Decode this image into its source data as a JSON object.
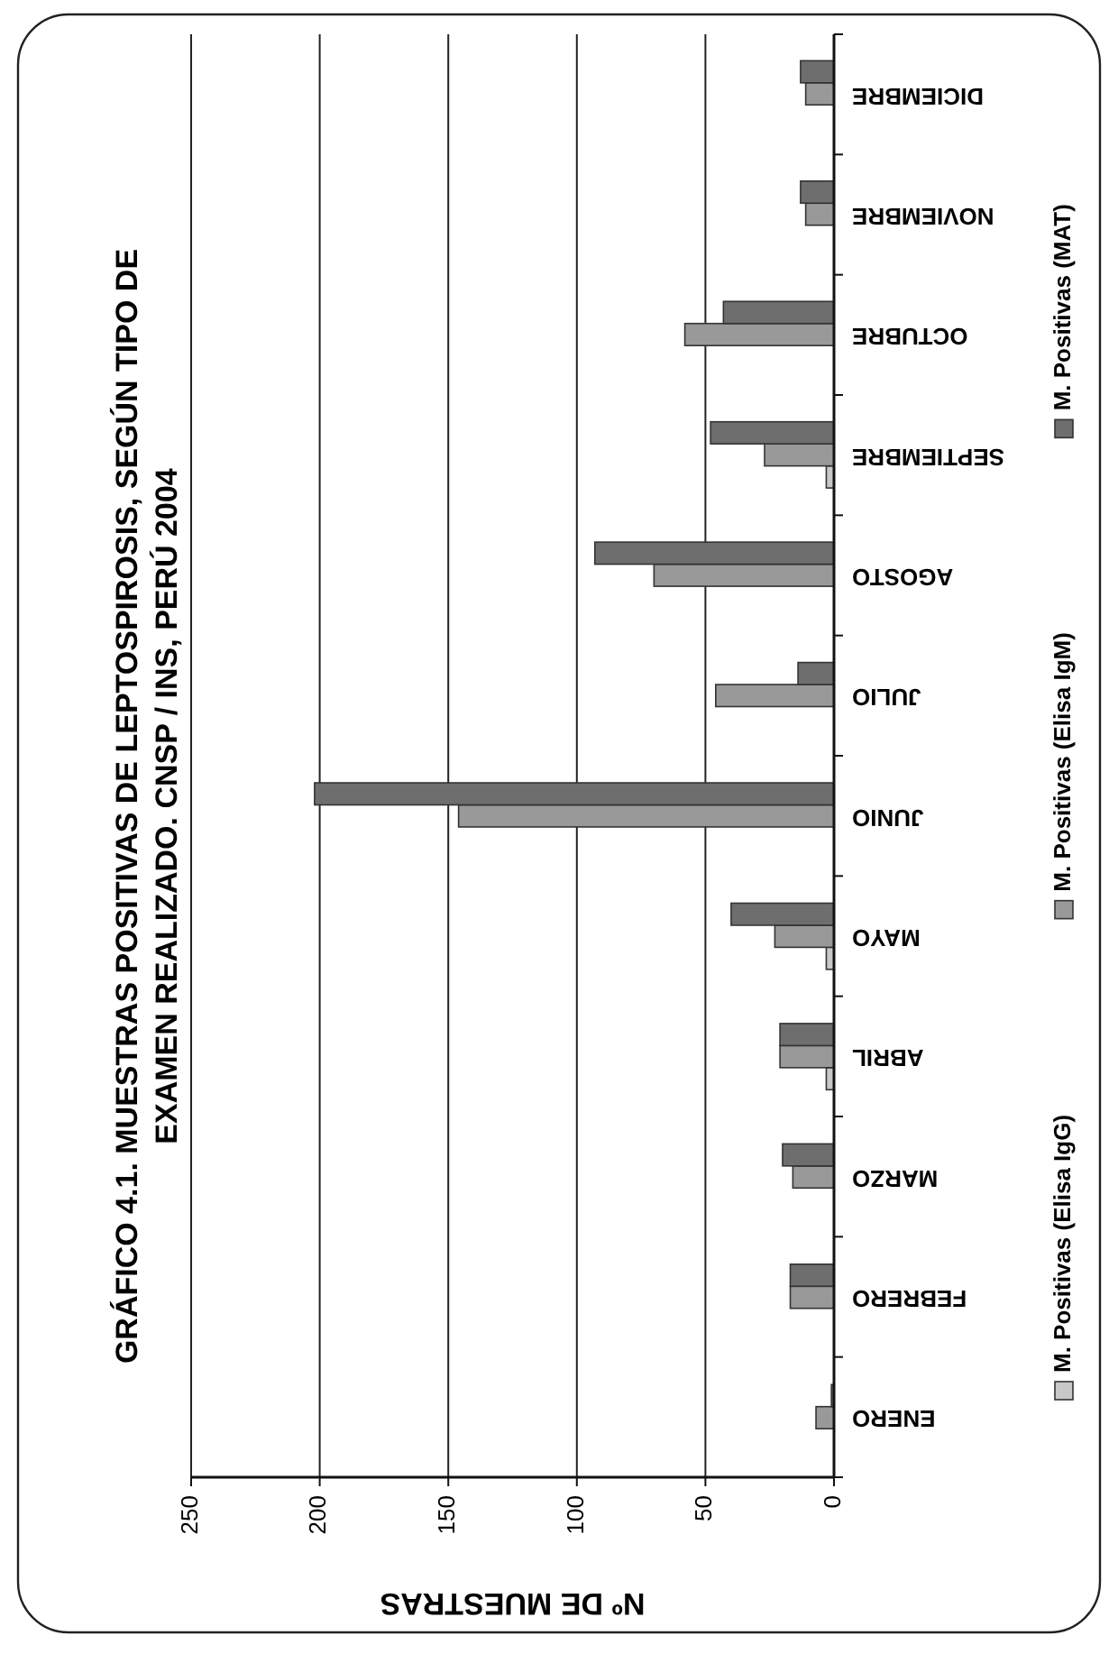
{
  "chart_data": {
    "type": "bar",
    "orientation": "horizontal",
    "title": "GRÁFICO 4.1. MUESTRAS POSITIVAS DE LEPTOSPIROSIS, SEGÚN TIPO DE\nEXAMEN REALIZADO. CNSP / INS, PERÚ 2004",
    "xlabel": "Nº DE MUESTRAS",
    "categories": [
      "DICIEMBRE",
      "NOVIEMBRE",
      "OCTUBRE",
      "SEPTIEMBRE",
      "AGOSTO",
      "JULIO",
      "JUNIO",
      "MAYO",
      "ABRIL",
      "MARZO",
      "FEBRERO",
      "ENERO"
    ],
    "series": [
      {
        "name": "M. Positivas (Elisa IgG)",
        "color": "#c8c8c8",
        "values": [
          0,
          0,
          0,
          3,
          0,
          0,
          0,
          3,
          3,
          0,
          0,
          0
        ]
      },
      {
        "name": "M. Positivas (Elisa IgM)",
        "color": "#999999",
        "values": [
          11,
          11,
          58,
          27,
          70,
          46,
          146,
          23,
          21,
          16,
          17,
          7
        ]
      },
      {
        "name": "M. Positivas (MAT)",
        "color": "#6e6e6e",
        "values": [
          13,
          13,
          43,
          48,
          93,
          14,
          202,
          40,
          21,
          20,
          17,
          1
        ]
      }
    ],
    "xlim": [
      250,
      0
    ],
    "xticks": [
      250,
      200,
      150,
      100,
      50,
      0
    ],
    "grid": "x",
    "legend": "right"
  }
}
